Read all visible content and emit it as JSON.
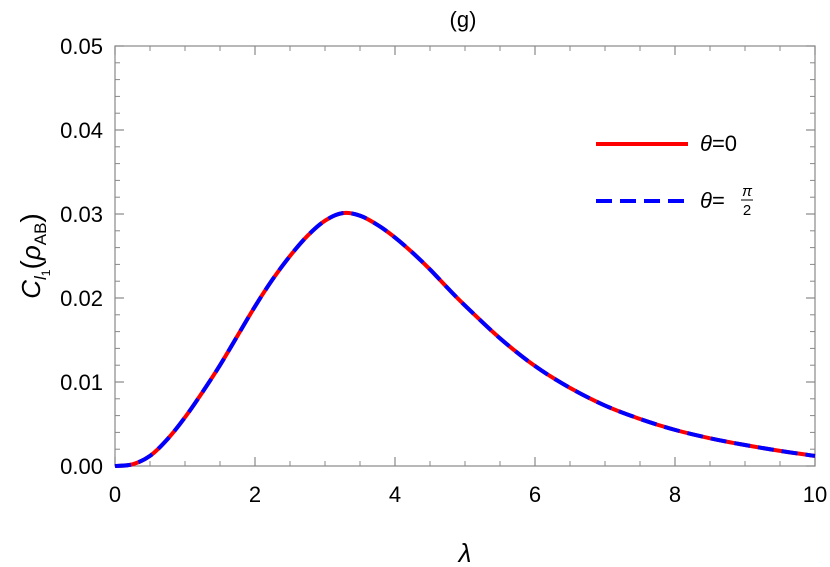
{
  "chart_data": {
    "type": "line",
    "title": "(g)",
    "xlabel": "λ",
    "ylabel": {
      "main": "C",
      "sub": "l",
      "subsub": "1",
      "rho": "ρ",
      "rho_sub": "AB"
    },
    "xlim": [
      0,
      10
    ],
    "ylim": [
      0,
      0.05
    ],
    "x_ticks": [
      0,
      2,
      4,
      6,
      8,
      10
    ],
    "x_tick_labels": [
      "0",
      "2",
      "4",
      "6",
      "8",
      "10"
    ],
    "y_ticks": [
      0,
      0.01,
      0.02,
      0.03,
      0.04,
      0.05
    ],
    "y_tick_labels": [
      "0.00",
      "0.01",
      "0.02",
      "0.03",
      "0.04",
      "0.05"
    ],
    "grid": false,
    "legend_position": "top-right",
    "x": [
      0,
      0.25,
      0.5,
      0.75,
      1.0,
      1.25,
      1.5,
      1.75,
      2.0,
      2.25,
      2.5,
      2.75,
      3.0,
      3.25,
      3.5,
      3.75,
      4.0,
      4.25,
      4.5,
      4.75,
      5.0,
      5.5,
      6.0,
      6.5,
      7.0,
      7.5,
      8.0,
      8.5,
      9.0,
      9.5,
      10.0
    ],
    "series": [
      {
        "name": "θ=0",
        "name_parts": {
          "symbol": "θ",
          "eq": "=",
          "value": "0"
        },
        "color": "#ff0000",
        "style": "solid",
        "values": [
          0.0,
          0.0002,
          0.0012,
          0.0032,
          0.0058,
          0.0088,
          0.012,
          0.0155,
          0.019,
          0.0222,
          0.025,
          0.0274,
          0.0292,
          0.0301,
          0.0298,
          0.0287,
          0.0272,
          0.0254,
          0.0234,
          0.0212,
          0.0191,
          0.0152,
          0.0119,
          0.0093,
          0.0072,
          0.0056,
          0.0043,
          0.0033,
          0.0025,
          0.0018,
          0.0012
        ]
      },
      {
        "name": "θ=π/2",
        "name_parts": {
          "symbol": "θ",
          "eq": "=",
          "num": "π",
          "den": "2"
        },
        "color": "#0000ff",
        "style": "dashed",
        "values": [
          0.0,
          0.0002,
          0.0012,
          0.0032,
          0.0058,
          0.0088,
          0.012,
          0.0155,
          0.019,
          0.0222,
          0.025,
          0.0274,
          0.0292,
          0.0301,
          0.0298,
          0.0287,
          0.0272,
          0.0254,
          0.0234,
          0.0212,
          0.0191,
          0.0152,
          0.0119,
          0.0093,
          0.0072,
          0.0056,
          0.0043,
          0.0033,
          0.0025,
          0.0018,
          0.0012
        ]
      }
    ]
  }
}
